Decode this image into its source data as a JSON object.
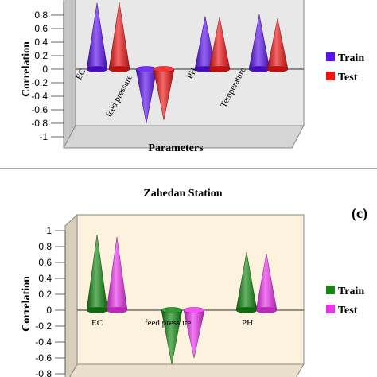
{
  "chart_data": [
    {
      "type": "bar",
      "style": "3d-cone",
      "title": "",
      "xlabel": "Parameters",
      "ylabel": "Correlation",
      "ylim": [
        -1,
        1
      ],
      "yticks": [
        "-1",
        "-0.8",
        "-0.6",
        "-0.4",
        "-0.2",
        "0",
        "0.2",
        "0.4",
        "0.6",
        "0.8"
      ],
      "categories": [
        "EC",
        "feed pressure",
        "PH",
        "Temperature"
      ],
      "series": [
        {
          "name": "Train",
          "color": "#5b10f0",
          "values": [
            0.98,
            -0.8,
            0.78,
            0.81
          ]
        },
        {
          "name": "Test",
          "color": "#f01414",
          "values": [
            0.99,
            -0.75,
            0.77,
            0.75
          ]
        }
      ],
      "legend_position": "right",
      "wall_color": "#e8e8e8",
      "grid": false
    },
    {
      "type": "bar",
      "style": "3d-cone",
      "title": "Zahedan Station",
      "panel_label": "(c)",
      "xlabel": "",
      "ylabel": "Correlation",
      "ylim": [
        -0.8,
        1
      ],
      "yticks": [
        "-0.8",
        "-0.6",
        "-0.4",
        "-0.2",
        "0",
        "0.2",
        "0.4",
        "0.6",
        "0.8",
        "1"
      ],
      "categories": [
        "EC",
        "feed pressure",
        "PH"
      ],
      "series": [
        {
          "name": "Train",
          "color": "#118811",
          "values": [
            0.95,
            -0.68,
            0.73
          ]
        },
        {
          "name": "Test",
          "color": "#ee33ee",
          "values": [
            0.92,
            -0.6,
            0.71
          ]
        }
      ],
      "legend_position": "right",
      "wall_color": "#fdf2dd",
      "grid": false
    }
  ]
}
